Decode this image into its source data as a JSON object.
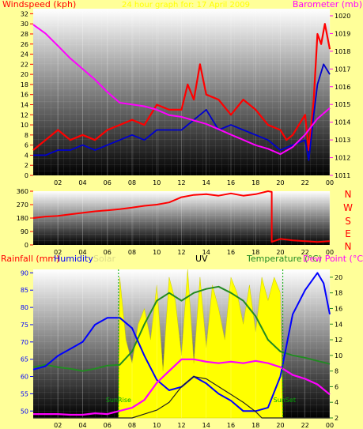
{
  "panel_top": {
    "title_left": "Windspeed (kph)",
    "title_center": "24 hour graph for: 17 April 2009",
    "title_right": "Barometer (mb)"
  },
  "panel_mid": {
    "compass": [
      "N",
      "W",
      "S",
      "E",
      "N"
    ]
  },
  "panel_bottom": {
    "label_rain": "Rainfall (mm)",
    "label_humidity": "Humidity",
    "label_solar": "Solar",
    "label_uv": "UV",
    "label_temp": "Temperature (°C)",
    "label_dew": "Dew Point (°C",
    "sunrise": "SunRise",
    "sunset": "SunSet"
  },
  "colors": {
    "background": "#ffff99",
    "wind_gust": "#ff0000",
    "wind_avg": "#0000cc",
    "pressure": "#ff00ff",
    "direction": "#ff0000",
    "humidity": "#0000ff",
    "temperature": "#ff00ff",
    "dewpoint": "#228b22",
    "solar": "#ffff00",
    "uv": "#222222"
  },
  "chart_data": [
    {
      "type": "line",
      "name": "wind-pressure",
      "x_ticks": [
        "02",
        "04",
        "06",
        "08",
        "10",
        "12",
        "14",
        "16",
        "18",
        "20",
        "22",
        "00"
      ],
      "y_left_ticks": [
        0,
        2,
        4,
        6,
        8,
        10,
        12,
        14,
        16,
        18,
        20,
        22,
        24,
        26,
        28,
        30,
        32
      ],
      "y_right_ticks": [
        1011,
        1012,
        1013,
        1014,
        1015,
        1016,
        1017,
        1018,
        1019,
        1020
      ],
      "ylim_left": [
        0,
        33
      ],
      "ylim_right": [
        1011,
        1020.4
      ],
      "xlim": [
        0,
        24
      ],
      "series": [
        {
          "key": "gust",
          "axis": "left",
          "x": [
            0,
            1,
            2,
            3,
            4,
            5,
            6,
            7,
            8,
            9,
            10,
            11,
            12,
            12.5,
            13,
            13.5,
            14,
            15,
            16,
            17,
            18,
            19,
            20,
            20.5,
            21,
            21.5,
            22,
            22.3,
            22.7,
            23,
            23.3,
            23.6,
            24
          ],
          "y": [
            5,
            7,
            9,
            7,
            8,
            7,
            9,
            10,
            11,
            10,
            14,
            13,
            13,
            18,
            15,
            22,
            16,
            15,
            12,
            15,
            13,
            10,
            9,
            7,
            8,
            10,
            12,
            5,
            15,
            28,
            26,
            30,
            25
          ]
        },
        {
          "key": "avg",
          "axis": "left",
          "x": [
            0,
            1,
            2,
            3,
            4,
            5,
            6,
            7,
            8,
            9,
            10,
            11,
            12,
            13,
            14,
            15,
            16,
            17,
            18,
            19,
            20,
            21,
            22,
            22.3,
            22.7,
            23,
            23.5,
            24
          ],
          "y": [
            4,
            4,
            5,
            5,
            6,
            5,
            6,
            7,
            8,
            7,
            9,
            9,
            9,
            11,
            13,
            9,
            10,
            9,
            8,
            7,
            5,
            6,
            7,
            3,
            12,
            18,
            22,
            20
          ]
        },
        {
          "key": "pressure",
          "axis": "right",
          "x": [
            0,
            1,
            2,
            3,
            4,
            5,
            6,
            7,
            8,
            9,
            10,
            11,
            12,
            13,
            14,
            15,
            16,
            17,
            18,
            19,
            20,
            21,
            22,
            23,
            24
          ],
          "y": [
            1019.5,
            1019.0,
            1018.3,
            1017.6,
            1017.0,
            1016.4,
            1015.7,
            1015.1,
            1015.0,
            1014.9,
            1014.7,
            1014.4,
            1014.3,
            1014.1,
            1013.9,
            1013.6,
            1013.3,
            1013.0,
            1012.7,
            1012.5,
            1012.2,
            1012.6,
            1013.3,
            1014.2,
            1014.8
          ]
        }
      ]
    },
    {
      "type": "line",
      "name": "wind-direction",
      "x_ticks": [
        "02",
        "04",
        "06",
        "08",
        "10",
        "12",
        "14",
        "16",
        "18",
        "20",
        "22",
        "00"
      ],
      "y_ticks": [
        0,
        90,
        180,
        270,
        360
      ],
      "ylim": [
        0,
        360
      ],
      "xlim": [
        0,
        24
      ],
      "series": [
        {
          "key": "direction",
          "x": [
            0,
            1,
            2,
            3,
            4,
            5,
            6,
            7,
            8,
            9,
            10,
            11,
            12,
            13,
            14,
            15,
            16,
            17,
            18,
            19,
            19.3,
            19.3,
            20,
            21,
            22,
            23,
            24
          ],
          "y": [
            180,
            190,
            195,
            205,
            215,
            225,
            232,
            240,
            250,
            262,
            270,
            285,
            320,
            335,
            340,
            330,
            345,
            330,
            340,
            360,
            355,
            20,
            40,
            30,
            25,
            20,
            25
          ]
        }
      ]
    },
    {
      "type": "line",
      "name": "temp-humidity",
      "x_ticks": [
        "02",
        "04",
        "06",
        "08",
        "10",
        "12",
        "14",
        "16",
        "18",
        "20",
        "22",
        "00"
      ],
      "y_left_ticks": [
        50,
        55,
        60,
        65,
        70,
        75,
        80,
        85,
        90
      ],
      "y_right_ticks": [
        2,
        4,
        6,
        8,
        10,
        12,
        14,
        16,
        18,
        20
      ],
      "ylim_left": [
        48,
        91
      ],
      "ylim_right": [
        2,
        21
      ],
      "xlim": [
        0,
        24
      ],
      "sunrise_hour": 6.9,
      "sunset_hour": 20.2,
      "series": [
        {
          "key": "humidity",
          "axis": "left",
          "x": [
            0,
            1,
            2,
            3,
            4,
            5,
            6,
            7,
            8,
            9,
            10,
            11,
            12,
            13,
            14,
            15,
            16,
            17,
            18,
            19,
            20,
            21,
            22,
            23,
            23.5,
            24
          ],
          "y": [
            62,
            63,
            66,
            68,
            70,
            75,
            77,
            77,
            74,
            66,
            59,
            56,
            57,
            60,
            58,
            55,
            53,
            50,
            50,
            51,
            60,
            78,
            85,
            90,
            87,
            78
          ]
        },
        {
          "key": "temperature",
          "axis": "right",
          "x": [
            0,
            1,
            2,
            3,
            4,
            5,
            6,
            7,
            8,
            9,
            10,
            11,
            12,
            13,
            14,
            15,
            16,
            17,
            18,
            19,
            20,
            21,
            22,
            23,
            24
          ],
          "y": [
            2.5,
            2.5,
            2.5,
            2.4,
            2.4,
            2.6,
            2.5,
            2.9,
            3.3,
            4.3,
            6.5,
            8.0,
            9.5,
            9.5,
            9.2,
            9.0,
            9.2,
            9.0,
            9.3,
            9.0,
            8.5,
            7.5,
            7.0,
            6.3,
            5.0
          ]
        },
        {
          "key": "dewpoint",
          "axis": "right",
          "x": [
            0,
            1,
            2,
            3,
            4,
            5,
            6,
            7,
            8,
            9,
            10,
            11,
            12,
            13,
            14,
            15,
            16,
            17,
            18,
            19,
            20,
            21,
            22,
            23,
            24
          ],
          "y": [
            8.5,
            8.8,
            8.5,
            8.3,
            8.0,
            8.3,
            8.7,
            8.8,
            10.5,
            14.0,
            17.0,
            18.0,
            17.0,
            18.0,
            18.5,
            18.8,
            18.0,
            17.0,
            15.0,
            12.0,
            10.5,
            10.0,
            9.7,
            9.3,
            8.9
          ]
        },
        {
          "key": "uv",
          "axis": "right",
          "x": [
            0,
            7,
            8,
            9,
            10,
            11,
            12,
            13,
            14,
            15,
            16,
            17,
            18,
            18.5,
            20,
            24
          ],
          "y": [
            2,
            2,
            2,
            2.5,
            3,
            4,
            6,
            7.3,
            7.0,
            6.0,
            5.0,
            4.0,
            2.8,
            2,
            2,
            2
          ]
        },
        {
          "key": "solar",
          "axis": "right",
          "x": [
            6.9,
            7.0,
            7.5,
            8.0,
            8.5,
            9.0,
            9.5,
            10.0,
            10.5,
            11.0,
            11.5,
            12.0,
            12.5,
            13.0,
            13.5,
            14.0,
            14.5,
            15.0,
            15.5,
            16.0,
            16.5,
            17.0,
            17.5,
            18.0,
            18.5,
            19.0,
            19.5,
            20.0,
            20.2
          ],
          "y": [
            2,
            20,
            12,
            9,
            14,
            16,
            12,
            19,
            8,
            20,
            17,
            10,
            21,
            9,
            20,
            11,
            19,
            16,
            12,
            20,
            18,
            14,
            19,
            13,
            20,
            17,
            20,
            18,
            2
          ]
        }
      ]
    }
  ]
}
